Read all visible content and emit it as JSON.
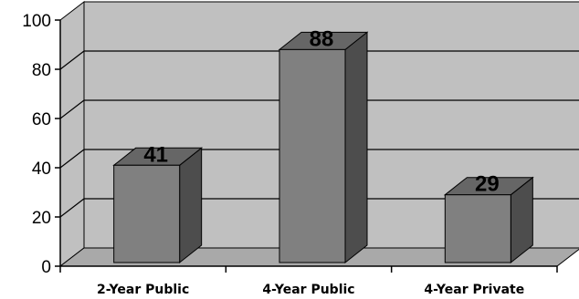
{
  "chart_data": {
    "type": "bar",
    "style": "3d-column",
    "categories": [
      "2-Year Public",
      "4-Year Public",
      "4-Year Private"
    ],
    "values": [
      41,
      88,
      29
    ],
    "data_labels": [
      "41",
      "88",
      "29"
    ],
    "title": "",
    "xlabel": "",
    "ylabel": "",
    "ylim": [
      0,
      100
    ],
    "yticks": [
      "0",
      "20",
      "40",
      "60",
      "80",
      "100"
    ],
    "grid": true,
    "legend": "none",
    "colors": {
      "wall": "#c0c0c0",
      "floor": "#a9a9a9",
      "bar_front": "#808080",
      "bar_side": "#4d4d4d",
      "bar_top": "#666666",
      "gridline": "#000000"
    }
  }
}
